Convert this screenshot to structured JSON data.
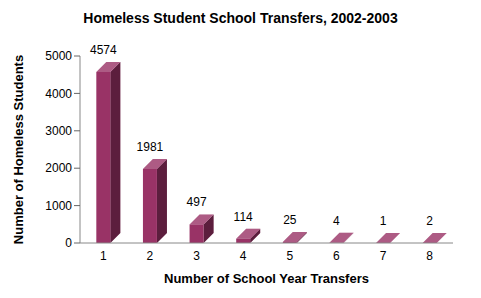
{
  "chart_data": {
    "type": "bar",
    "title": "Homeless Student School Transfers, 2002-2003",
    "x_label": "Number of School Year Transfers",
    "y_label": "Number of Homeless Students",
    "categories": [
      "1",
      "2",
      "3",
      "4",
      "5",
      "6",
      "7",
      "8"
    ],
    "values": [
      4574,
      1981,
      497,
      114,
      25,
      4,
      1,
      2
    ],
    "color": "#993366",
    "ylim": [
      0,
      5000
    ],
    "yticks": [
      0,
      1000,
      2000,
      3000,
      4000,
      5000
    ],
    "grid": false,
    "data_labels": true
  }
}
